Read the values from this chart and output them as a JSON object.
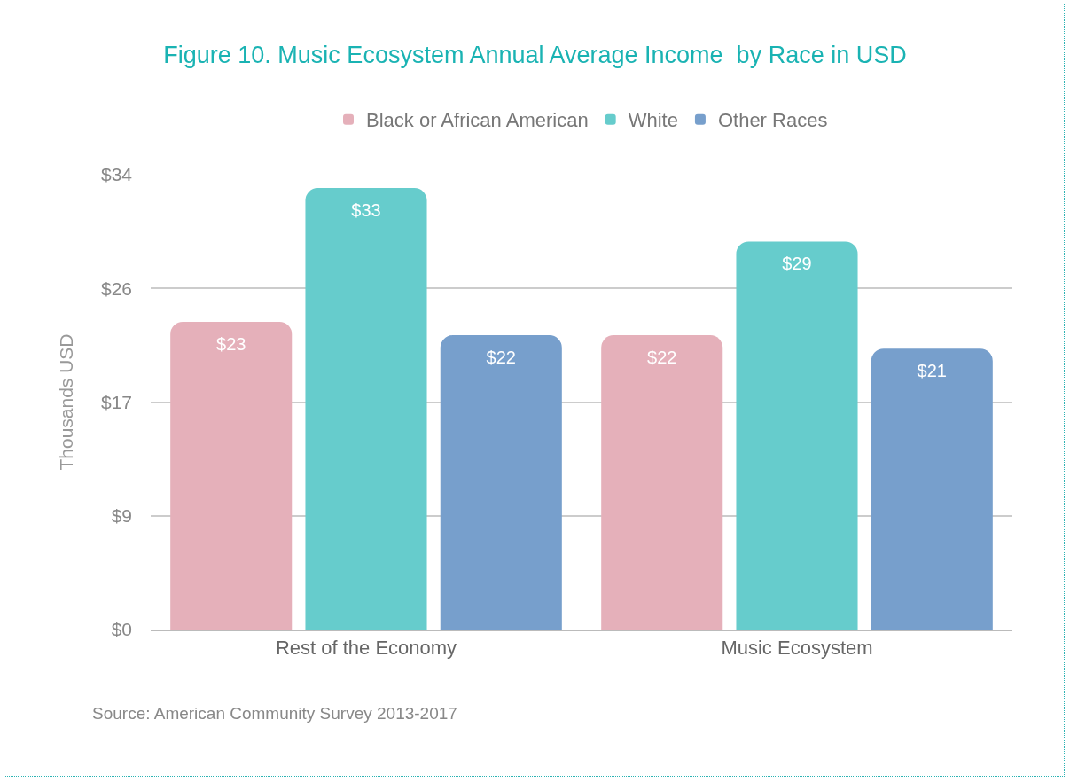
{
  "chart_data": {
    "type": "bar",
    "title": "Figure 10. Music Ecosystem Annual Average Income  by Race in USD",
    "ylabel": "Thousands USD",
    "categories": [
      "Rest of the Economy",
      "Music Ecosystem"
    ],
    "series": [
      {
        "name": "Black or African American",
        "color": "#e5b0ba",
        "values": [
          23,
          22
        ],
        "value_labels": [
          "$23",
          "$22"
        ]
      },
      {
        "name": "White",
        "color": "#66cccc",
        "values": [
          33,
          29
        ],
        "value_labels": [
          "$33",
          "$29"
        ]
      },
      {
        "name": "Other Races",
        "color": "#779fcc",
        "values": [
          22,
          21
        ],
        "value_labels": [
          "$22",
          "$21"
        ]
      }
    ],
    "ylim": [
      0,
      34
    ],
    "yticks": [
      {
        "value": 0,
        "label": "$0"
      },
      {
        "value": 8.5,
        "label": "$9"
      },
      {
        "value": 17,
        "label": "$17"
      },
      {
        "value": 25.5,
        "label": "$26"
      },
      {
        "value": 34,
        "label": "$34"
      }
    ],
    "grid": "y",
    "legend": "top",
    "annotations": [
      "Source: American Community Survey 2013-2017"
    ]
  }
}
